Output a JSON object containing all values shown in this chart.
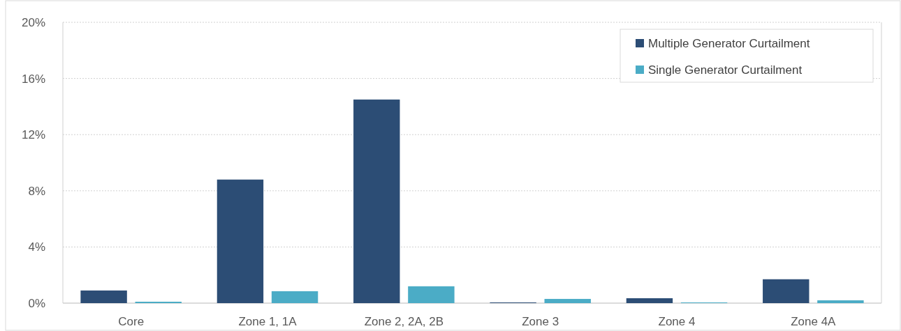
{
  "chart_data": {
    "type": "bar",
    "categories": [
      "Core",
      "Zone 1, 1A",
      "Zone 2, 2A, 2B",
      "Zone 3",
      "Zone 4",
      "Zone 4A"
    ],
    "series": [
      {
        "name": "Multiple Generator Curtailment",
        "color": "#2c4d75",
        "values": [
          0.9,
          8.8,
          14.5,
          0.05,
          0.35,
          1.7
        ]
      },
      {
        "name": "Single Generator Curtailment",
        "color": "#4bacc6",
        "values": [
          0.1,
          0.85,
          1.2,
          0.3,
          0.05,
          0.2
        ]
      }
    ],
    "ylim": [
      0,
      20
    ],
    "yticks": [
      {
        "value": 0,
        "label": "0%"
      },
      {
        "value": 4,
        "label": "4%"
      },
      {
        "value": 8,
        "label": "8%"
      },
      {
        "value": 12,
        "label": "12%"
      },
      {
        "value": 16,
        "label": "16%"
      },
      {
        "value": 20,
        "label": "20%"
      }
    ],
    "grid": "y",
    "legend": "top right"
  }
}
